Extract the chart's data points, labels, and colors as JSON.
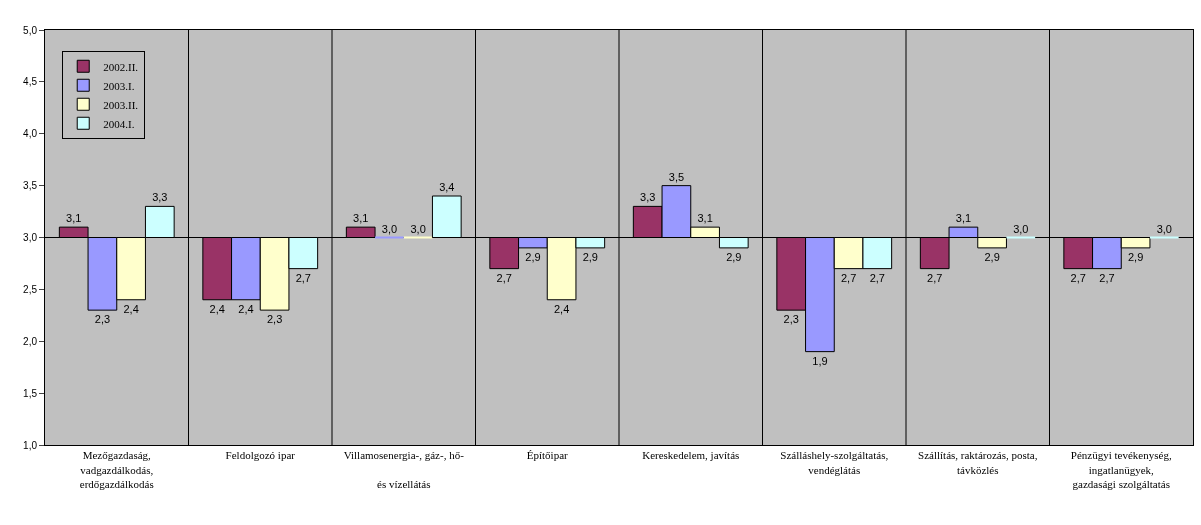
{
  "chart_data": {
    "type": "bar",
    "categories": [
      "Mezőgazdaság,\nvadgazdálkodás,\nerdőgazdálkodás",
      "Feldolgozó ipar",
      "Villamosenergia-, gáz-, hő-\n\nés vízellátás",
      "Építőipar",
      "Kereskedelem, javítás",
      "Szálláshely-szolgáltatás,\nvendéglátás",
      "Szállítás, raktározás, posta,\ntávközlés",
      "Pénzügyi tevékenység,\ningatlanügyek,\ngazdasági szolgáltatás"
    ],
    "series": [
      {
        "name": "2002.II.",
        "color": "#993366",
        "base": [
          3,
          3,
          3,
          3,
          3,
          3,
          3,
          3
        ],
        "values": [
          0.1,
          -0.6,
          0.1,
          -0.3,
          0.3,
          -0.7,
          -0.3,
          -0.3
        ],
        "value_labels": [
          "3,1",
          "2,4",
          "3,1",
          "2,7",
          "3,3",
          "2,3",
          "2,7",
          "2,7"
        ]
      },
      {
        "name": "2003.I.",
        "color": "#9999ff",
        "base": [
          3,
          3,
          3,
          3,
          3,
          3,
          3,
          3
        ],
        "values": [
          -0.7,
          -0.6,
          0,
          -0.1,
          0.5,
          -1.1,
          0.1,
          -0.3
        ],
        "value_labels": [
          "2,3",
          "2,4",
          "3,0",
          "2,9",
          "3,5",
          "1,9",
          "3,1",
          "2,7"
        ]
      },
      {
        "name": "2003.II.",
        "color": "#ffffcc",
        "base": [
          3,
          3,
          3,
          3,
          3,
          3,
          3,
          3
        ],
        "values": [
          -0.6,
          -0.7,
          0,
          -0.6,
          0.1,
          -0.3,
          -0.1,
          -0.1
        ],
        "value_labels": [
          "2,4",
          "2,3",
          "3,0",
          "2,4",
          "3,1",
          "2,7",
          "2,9",
          "2,9"
        ]
      },
      {
        "name": "2004.I.",
        "color": "#ccffff",
        "base": [
          3,
          3,
          3,
          3,
          3,
          3,
          3,
          3
        ],
        "values": [
          0.3,
          -0.3,
          0.4,
          -0.1,
          -0.1,
          -0.3,
          0,
          0
        ],
        "value_labels": [
          "3,3",
          "2,7",
          "3,4",
          "2,9",
          "2,9",
          "2,7",
          "3,0",
          "3,0"
        ]
      }
    ],
    "ylim": [
      1,
      5
    ],
    "yticks": [
      {
        "value": 1,
        "label": "1,0"
      },
      {
        "value": 1.5,
        "label": "1,5"
      },
      {
        "value": 2,
        "label": "2,0"
      },
      {
        "value": 2.5,
        "label": "2,5"
      },
      {
        "value": 3,
        "label": "3,0"
      },
      {
        "value": 3.5,
        "label": "3,5"
      },
      {
        "value": 4,
        "label": "4,0"
      },
      {
        "value": 4.5,
        "label": "4,5"
      },
      {
        "value": 5,
        "label": "5,0"
      }
    ],
    "ref_lines": [
      {
        "axis": "y",
        "value": 3,
        "color": "#000000"
      }
    ],
    "grid": "x",
    "legend": "top left"
  }
}
